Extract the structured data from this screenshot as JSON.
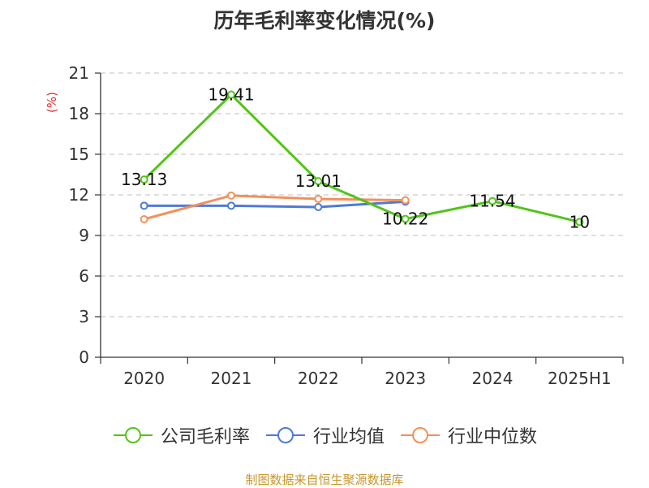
{
  "chart_data": {
    "type": "line",
    "title": "历年毛利率变化情况(%)",
    "ylabel": "(%)",
    "xlabel": "",
    "categories": [
      "2020",
      "2021",
      "2022",
      "2023",
      "2024",
      "2025H1"
    ],
    "ylim": [
      0,
      21
    ],
    "yticks": [
      0,
      3,
      6,
      9,
      12,
      15,
      18,
      21
    ],
    "grid": true,
    "legend_position": "bottom",
    "series": [
      {
        "name": "公司毛利率",
        "color": "#52c41a",
        "values": [
          13.13,
          19.41,
          13.01,
          10.22,
          11.54,
          10
        ],
        "labels": [
          "13.13",
          "19.41",
          "13.01",
          "10.22",
          "11.54",
          "10"
        ]
      },
      {
        "name": "行业均值",
        "color": "#4e7bd9",
        "values": [
          11.2,
          11.2,
          11.1,
          11.5,
          null,
          null
        ]
      },
      {
        "name": "行业中位数",
        "color": "#f4905a",
        "values": [
          10.2,
          11.95,
          11.7,
          11.6,
          null,
          null
        ]
      }
    ]
  },
  "source": "制图数据来自恒生聚源数据库"
}
